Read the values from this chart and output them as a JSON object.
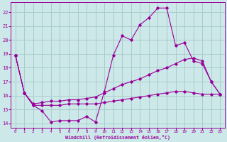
{
  "xlabel": "Windchill (Refroidissement éolien,°C)",
  "xlim": [
    -0.5,
    23.5
  ],
  "ylim": [
    13.7,
    22.7
  ],
  "yticks": [
    14,
    15,
    16,
    17,
    18,
    19,
    20,
    21,
    22
  ],
  "xticks": [
    0,
    1,
    2,
    3,
    4,
    5,
    6,
    7,
    8,
    9,
    10,
    11,
    12,
    13,
    14,
    15,
    16,
    17,
    18,
    19,
    20,
    21,
    22,
    23
  ],
  "background_color": "#cce8e8",
  "grid_color": "#aacccc",
  "line_color": "#990099",
  "line1_x": [
    0,
    1,
    2,
    3,
    4,
    5,
    6,
    7,
    8,
    9,
    10,
    11,
    12,
    13,
    14,
    15,
    16,
    17,
    18,
    19,
    20,
    21,
    22,
    23
  ],
  "line1_y": [
    18.9,
    16.2,
    15.3,
    14.9,
    14.1,
    14.2,
    14.2,
    14.2,
    14.5,
    14.1,
    16.3,
    18.9,
    20.3,
    20.0,
    21.1,
    21.6,
    22.3,
    22.3,
    19.6,
    19.8,
    18.5,
    18.3,
    17.0,
    16.1
  ],
  "line2_x": [
    0,
    1,
    2,
    3,
    4,
    5,
    6,
    7,
    8,
    9,
    10,
    11,
    12,
    13,
    14,
    15,
    16,
    17,
    18,
    19,
    20,
    21,
    22,
    23
  ],
  "line2_y": [
    18.9,
    16.2,
    15.4,
    15.5,
    15.6,
    15.6,
    15.7,
    15.7,
    15.8,
    15.9,
    16.2,
    16.5,
    16.8,
    17.0,
    17.2,
    17.5,
    17.8,
    18.0,
    18.3,
    18.6,
    18.7,
    18.5,
    17.0,
    16.1
  ],
  "line3_x": [
    0,
    1,
    2,
    3,
    4,
    5,
    6,
    7,
    8,
    9,
    10,
    11,
    12,
    13,
    14,
    15,
    16,
    17,
    18,
    19,
    20,
    21,
    22,
    23
  ],
  "line3_y": [
    18.9,
    16.2,
    15.3,
    15.3,
    15.3,
    15.3,
    15.4,
    15.4,
    15.4,
    15.4,
    15.5,
    15.6,
    15.7,
    15.8,
    15.9,
    16.0,
    16.1,
    16.2,
    16.3,
    16.3,
    16.2,
    16.1,
    16.1,
    16.1
  ]
}
